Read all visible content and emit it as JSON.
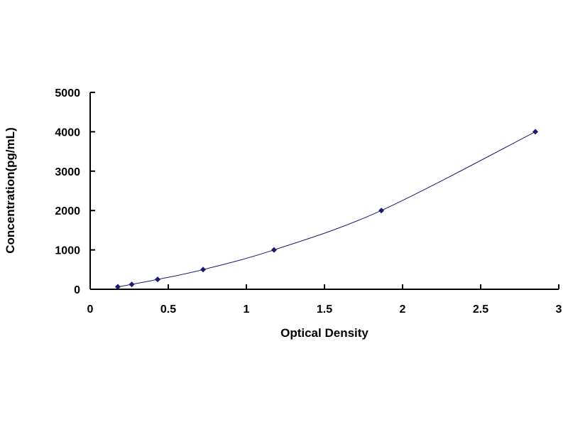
{
  "chart_data": {
    "type": "scatter",
    "title": "",
    "xlabel": "Optical Density",
    "ylabel": "Concentration(pg/mL)",
    "xlim": [
      0,
      3
    ],
    "ylim": [
      0,
      5000
    ],
    "xticks": [
      "0",
      "0.5",
      "1",
      "1.5",
      "2",
      "2.5",
      "3"
    ],
    "yticks": [
      "0",
      "1000",
      "2000",
      "3000",
      "4000",
      "5000"
    ],
    "grid": false,
    "legend": "none",
    "series": [
      {
        "x": [
          0.177,
          0.266,
          0.432,
          0.723,
          1.177,
          1.864,
          2.85
        ],
        "y": [
          62.5,
          125,
          250,
          500,
          1000,
          2000,
          4000
        ],
        "color": "#1a1a6e",
        "marker": "diamond",
        "trendline": "smooth curve"
      }
    ]
  }
}
